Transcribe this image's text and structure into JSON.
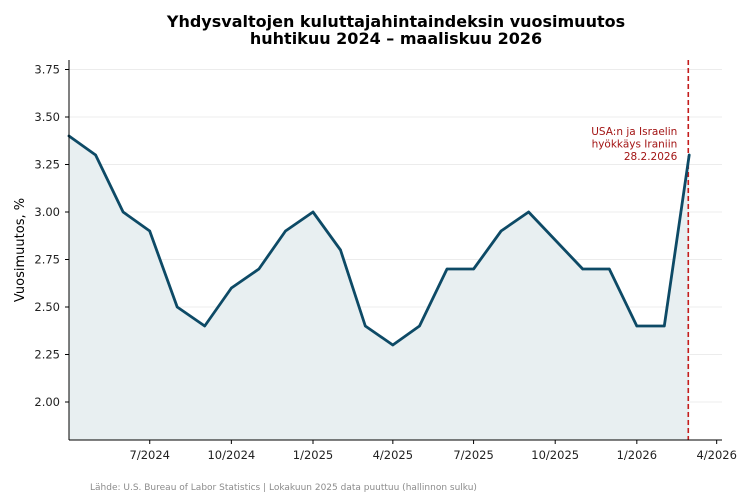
{
  "chart_data": {
    "type": "area",
    "title_line1": "Yhdysvaltojen kuluttajahintaindeksin vuosimuutos",
    "title_line2": "huhtikuu 2024 – maaliskuu 2026",
    "xlabel": "",
    "ylabel": "Vuosimuutos, %",
    "x": [
      "2024-04-01",
      "2024-05-01",
      "2024-06-01",
      "2024-07-01",
      "2024-08-01",
      "2024-09-01",
      "2024-10-01",
      "2024-11-01",
      "2024-12-01",
      "2025-01-01",
      "2025-02-01",
      "2025-03-01",
      "2025-04-01",
      "2025-05-01",
      "2025-06-01",
      "2025-07-01",
      "2025-08-01",
      "2025-09-01",
      "2025-11-01",
      "2025-12-01",
      "2026-01-01",
      "2026-02-01",
      "2026-03-01"
    ],
    "series": [
      {
        "values": [
          3.4,
          3.3,
          3.0,
          2.9,
          2.5,
          2.4,
          2.6,
          2.7,
          2.9,
          3.0,
          2.8,
          2.4,
          2.3,
          2.4,
          2.7,
          2.7,
          2.9,
          3.0,
          2.7,
          2.7,
          2.4,
          2.4,
          3.3
        ]
      }
    ],
    "xlim": [
      "2024-04-01",
      "2026-04-07"
    ],
    "ylim": [
      1.8,
      3.8
    ],
    "y_ticks": [
      2.0,
      2.25,
      2.5,
      2.75,
      3.0,
      3.25,
      3.5,
      3.75
    ],
    "y_tick_labels": [
      "2.00",
      "2.25",
      "2.50",
      "2.75",
      "3.00",
      "3.25",
      "3.50",
      "3.75"
    ],
    "x_ticks": [
      "2024-07-01",
      "2024-10-01",
      "2025-01-01",
      "2025-04-01",
      "2025-07-01",
      "2025-10-01",
      "2026-01-01",
      "2026-04-01"
    ],
    "x_tick_labels": [
      "7/2024",
      "10/2024",
      "1/2025",
      "4/2025",
      "7/2025",
      "10/2025",
      "1/2026",
      "4/2026"
    ],
    "grid": "horizontal",
    "event_line": {
      "x": "2026-02-28",
      "label_lines": [
        "USA:n ja Israelin",
        "hyökkäys Iraniin",
        "28.2.2026"
      ]
    },
    "source_note": "Lähde: U.S. Bureau of Labor Statistics  |  Lokakuun 2025 data puuttuu (hallinnon sulku)"
  },
  "colors": {
    "line": "#0d4a66",
    "fill": "#e8eff1",
    "event": "#c41c1c",
    "annotation_text": "#a31515",
    "grid": "#e6e6e6",
    "axis": "#000000"
  }
}
